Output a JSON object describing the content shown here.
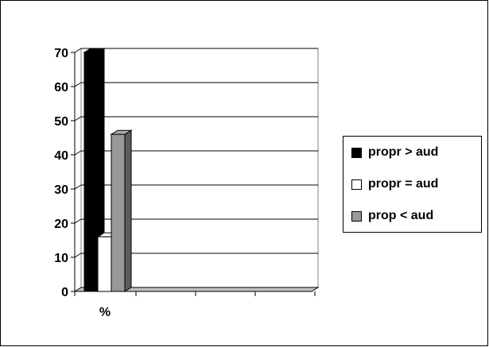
{
  "chart_data": {
    "type": "bar",
    "categories": [
      "%"
    ],
    "series": [
      {
        "name": "propr > aud",
        "values": [
          70
        ],
        "color": "#000000"
      },
      {
        "name": "propr = aud",
        "values": [
          16
        ],
        "color": "#ffffff"
      },
      {
        "name": "prop < aud",
        "values": [
          46
        ],
        "color": "#999999"
      }
    ],
    "ylim": [
      0,
      70
    ],
    "yticks": [
      0,
      10,
      20,
      30,
      40,
      50,
      60,
      70
    ],
    "grid": true,
    "legend": "right",
    "style": "3d-bars"
  }
}
